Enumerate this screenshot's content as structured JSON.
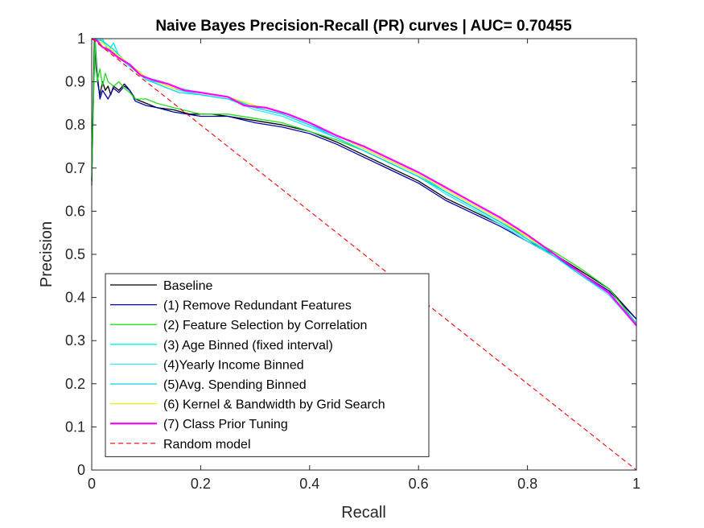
{
  "chart_data": {
    "type": "line",
    "title": "Naive Bayes Precision-Recall (PR) curves | AUC= 0.70455",
    "xlabel": "Recall",
    "ylabel": "Precision",
    "xlim": [
      0,
      1
    ],
    "ylim": [
      0,
      1
    ],
    "x_ticks": [
      0,
      0.2,
      0.4,
      0.6,
      0.8,
      1
    ],
    "x_tick_labels": [
      "0",
      "0.2",
      "0.4",
      "0.6",
      "0.8",
      "1"
    ],
    "y_ticks": [
      0,
      0.1,
      0.2,
      0.3,
      0.4,
      0.5,
      0.6,
      0.7,
      0.8,
      0.9,
      1
    ],
    "y_tick_labels": [
      "0",
      "0.1",
      "0.2",
      "0.3",
      "0.4",
      "0.5",
      "0.6",
      "0.7",
      "0.8",
      "0.9",
      "1"
    ],
    "grid": false,
    "legend_position": "bottom-left",
    "series": [
      {
        "name": "Baseline",
        "color": "#000000",
        "width": 1.3,
        "dash": "",
        "points": [
          [
            0.0,
            0.67
          ],
          [
            0.002,
            0.82
          ],
          [
            0.005,
            1.0
          ],
          [
            0.008,
            0.93
          ],
          [
            0.012,
            0.89
          ],
          [
            0.015,
            0.87
          ],
          [
            0.02,
            0.9
          ],
          [
            0.025,
            0.88
          ],
          [
            0.03,
            0.89
          ],
          [
            0.035,
            0.87
          ],
          [
            0.04,
            0.89
          ],
          [
            0.05,
            0.88
          ],
          [
            0.06,
            0.895
          ],
          [
            0.07,
            0.88
          ],
          [
            0.08,
            0.86
          ],
          [
            0.1,
            0.85
          ],
          [
            0.12,
            0.84
          ],
          [
            0.15,
            0.835
          ],
          [
            0.18,
            0.825
          ],
          [
            0.22,
            0.825
          ],
          [
            0.25,
            0.82
          ],
          [
            0.3,
            0.81
          ],
          [
            0.35,
            0.8
          ],
          [
            0.4,
            0.785
          ],
          [
            0.45,
            0.76
          ],
          [
            0.5,
            0.73
          ],
          [
            0.55,
            0.7
          ],
          [
            0.6,
            0.67
          ],
          [
            0.65,
            0.63
          ],
          [
            0.7,
            0.6
          ],
          [
            0.75,
            0.57
          ],
          [
            0.8,
            0.53
          ],
          [
            0.85,
            0.5
          ],
          [
            0.9,
            0.46
          ],
          [
            0.95,
            0.42
          ],
          [
            1.0,
            0.35
          ]
        ]
      },
      {
        "name": "(1) Remove Redundant Features",
        "color": "#0000aa",
        "width": 1.3,
        "dash": "",
        "points": [
          [
            0.0,
            0.66
          ],
          [
            0.003,
            0.85
          ],
          [
            0.006,
            1.0
          ],
          [
            0.01,
            0.92
          ],
          [
            0.015,
            0.86
          ],
          [
            0.02,
            0.88
          ],
          [
            0.03,
            0.86
          ],
          [
            0.04,
            0.885
          ],
          [
            0.05,
            0.875
          ],
          [
            0.06,
            0.89
          ],
          [
            0.07,
            0.88
          ],
          [
            0.08,
            0.855
          ],
          [
            0.1,
            0.845
          ],
          [
            0.12,
            0.84
          ],
          [
            0.15,
            0.83
          ],
          [
            0.2,
            0.82
          ],
          [
            0.25,
            0.82
          ],
          [
            0.3,
            0.805
          ],
          [
            0.35,
            0.795
          ],
          [
            0.4,
            0.78
          ],
          [
            0.45,
            0.755
          ],
          [
            0.5,
            0.725
          ],
          [
            0.55,
            0.695
          ],
          [
            0.6,
            0.665
          ],
          [
            0.65,
            0.625
          ],
          [
            0.7,
            0.595
          ],
          [
            0.75,
            0.565
          ],
          [
            0.8,
            0.53
          ],
          [
            0.85,
            0.495
          ],
          [
            0.9,
            0.455
          ],
          [
            0.95,
            0.415
          ],
          [
            1.0,
            0.35
          ]
        ]
      },
      {
        "name": "(2) Feature Selection by Correlation",
        "color": "#22dd22",
        "width": 1.3,
        "dash": "",
        "points": [
          [
            0.0,
            0.67
          ],
          [
            0.003,
            0.84
          ],
          [
            0.006,
            1.0
          ],
          [
            0.01,
            0.9
          ],
          [
            0.015,
            0.93
          ],
          [
            0.02,
            0.89
          ],
          [
            0.025,
            0.92
          ],
          [
            0.03,
            0.9
          ],
          [
            0.04,
            0.89
          ],
          [
            0.05,
            0.9
          ],
          [
            0.06,
            0.885
          ],
          [
            0.07,
            0.875
          ],
          [
            0.08,
            0.86
          ],
          [
            0.1,
            0.86
          ],
          [
            0.12,
            0.85
          ],
          [
            0.15,
            0.84
          ],
          [
            0.2,
            0.825
          ],
          [
            0.25,
            0.825
          ],
          [
            0.3,
            0.815
          ],
          [
            0.35,
            0.805
          ],
          [
            0.4,
            0.785
          ],
          [
            0.45,
            0.765
          ],
          [
            0.5,
            0.74
          ],
          [
            0.55,
            0.71
          ],
          [
            0.6,
            0.68
          ],
          [
            0.65,
            0.645
          ],
          [
            0.7,
            0.61
          ],
          [
            0.75,
            0.575
          ],
          [
            0.8,
            0.54
          ],
          [
            0.85,
            0.505
          ],
          [
            0.9,
            0.465
          ],
          [
            0.95,
            0.42
          ],
          [
            1.0,
            0.34
          ]
        ]
      },
      {
        "name": "(3) Age Binned (fixed interval)",
        "color": "#00f0f0",
        "width": 1.3,
        "dash": "",
        "points": [
          [
            0.0,
            1.0
          ],
          [
            0.02,
            1.0
          ],
          [
            0.03,
            0.97
          ],
          [
            0.04,
            0.99
          ],
          [
            0.05,
            0.96
          ],
          [
            0.07,
            0.94
          ],
          [
            0.1,
            0.91
          ],
          [
            0.13,
            0.9
          ],
          [
            0.16,
            0.885
          ],
          [
            0.2,
            0.875
          ],
          [
            0.25,
            0.865
          ],
          [
            0.3,
            0.84
          ],
          [
            0.35,
            0.825
          ],
          [
            0.4,
            0.8
          ],
          [
            0.45,
            0.775
          ],
          [
            0.5,
            0.745
          ],
          [
            0.55,
            0.715
          ],
          [
            0.6,
            0.685
          ],
          [
            0.65,
            0.645
          ],
          [
            0.7,
            0.61
          ],
          [
            0.75,
            0.575
          ],
          [
            0.8,
            0.535
          ],
          [
            0.85,
            0.5
          ],
          [
            0.9,
            0.455
          ],
          [
            0.95,
            0.41
          ],
          [
            1.0,
            0.34
          ]
        ]
      },
      {
        "name": "(4)Yearly Income Binned",
        "color": "#33e8ff",
        "width": 1.3,
        "dash": "",
        "points": [
          [
            0.0,
            1.0
          ],
          [
            0.015,
            1.0
          ],
          [
            0.03,
            0.98
          ],
          [
            0.05,
            0.955
          ],
          [
            0.07,
            0.935
          ],
          [
            0.1,
            0.905
          ],
          [
            0.13,
            0.895
          ],
          [
            0.16,
            0.88
          ],
          [
            0.2,
            0.87
          ],
          [
            0.25,
            0.86
          ],
          [
            0.3,
            0.835
          ],
          [
            0.35,
            0.82
          ],
          [
            0.4,
            0.795
          ],
          [
            0.45,
            0.77
          ],
          [
            0.5,
            0.74
          ],
          [
            0.55,
            0.71
          ],
          [
            0.6,
            0.68
          ],
          [
            0.65,
            0.64
          ],
          [
            0.7,
            0.605
          ],
          [
            0.75,
            0.57
          ],
          [
            0.8,
            0.53
          ],
          [
            0.85,
            0.495
          ],
          [
            0.9,
            0.45
          ],
          [
            0.95,
            0.405
          ],
          [
            1.0,
            0.335
          ]
        ]
      },
      {
        "name": "(5)Avg. Spending Binned",
        "color": "#00d8e8",
        "width": 1.3,
        "dash": "",
        "points": [
          [
            0.0,
            1.0
          ],
          [
            0.02,
            0.995
          ],
          [
            0.04,
            0.975
          ],
          [
            0.06,
            0.95
          ],
          [
            0.08,
            0.925
          ],
          [
            0.1,
            0.905
          ],
          [
            0.13,
            0.89
          ],
          [
            0.16,
            0.875
          ],
          [
            0.2,
            0.87
          ],
          [
            0.25,
            0.86
          ],
          [
            0.3,
            0.84
          ],
          [
            0.35,
            0.825
          ],
          [
            0.4,
            0.8
          ],
          [
            0.45,
            0.77
          ],
          [
            0.5,
            0.74
          ],
          [
            0.55,
            0.71
          ],
          [
            0.6,
            0.68
          ],
          [
            0.65,
            0.645
          ],
          [
            0.7,
            0.61
          ],
          [
            0.75,
            0.575
          ],
          [
            0.8,
            0.535
          ],
          [
            0.85,
            0.495
          ],
          [
            0.9,
            0.45
          ],
          [
            0.95,
            0.41
          ],
          [
            1.0,
            0.34
          ]
        ]
      },
      {
        "name": "(6) Kernel & Bandwidth by Grid Search",
        "color": "#f0f000",
        "width": 1.3,
        "dash": "",
        "points": [
          [
            0.0,
            1.0
          ],
          [
            0.02,
            0.99
          ],
          [
            0.05,
            0.96
          ],
          [
            0.08,
            0.93
          ],
          [
            0.1,
            0.91
          ],
          [
            0.15,
            0.885
          ],
          [
            0.2,
            0.875
          ],
          [
            0.25,
            0.865
          ],
          [
            0.3,
            0.845
          ],
          [
            0.35,
            0.83
          ],
          [
            0.4,
            0.805
          ],
          [
            0.45,
            0.775
          ],
          [
            0.5,
            0.745
          ],
          [
            0.55,
            0.715
          ],
          [
            0.6,
            0.685
          ],
          [
            0.65,
            0.65
          ],
          [
            0.7,
            0.615
          ],
          [
            0.75,
            0.58
          ],
          [
            0.8,
            0.54
          ],
          [
            0.85,
            0.5
          ],
          [
            0.9,
            0.455
          ],
          [
            0.95,
            0.41
          ],
          [
            1.0,
            0.335
          ]
        ]
      },
      {
        "name": "(7) Class Prior Tuning",
        "color": "#ff00ff",
        "width": 2.2,
        "dash": "",
        "points": [
          [
            0.0,
            1.0
          ],
          [
            0.01,
            0.995
          ],
          [
            0.02,
            0.98
          ],
          [
            0.03,
            0.975
          ],
          [
            0.05,
            0.955
          ],
          [
            0.07,
            0.94
          ],
          [
            0.09,
            0.915
          ],
          [
            0.11,
            0.905
          ],
          [
            0.14,
            0.895
          ],
          [
            0.17,
            0.88
          ],
          [
            0.2,
            0.875
          ],
          [
            0.25,
            0.865
          ],
          [
            0.28,
            0.845
          ],
          [
            0.32,
            0.84
          ],
          [
            0.36,
            0.825
          ],
          [
            0.4,
            0.805
          ],
          [
            0.45,
            0.775
          ],
          [
            0.5,
            0.75
          ],
          [
            0.55,
            0.72
          ],
          [
            0.6,
            0.69
          ],
          [
            0.65,
            0.655
          ],
          [
            0.7,
            0.62
          ],
          [
            0.75,
            0.585
          ],
          [
            0.8,
            0.545
          ],
          [
            0.85,
            0.5
          ],
          [
            0.9,
            0.455
          ],
          [
            0.95,
            0.41
          ],
          [
            1.0,
            0.335
          ]
        ]
      },
      {
        "name": "Random model",
        "color": "#ff0000",
        "width": 1.1,
        "dash": "6 4",
        "points": [
          [
            0.0,
            1.0
          ],
          [
            1.0,
            0.0
          ]
        ]
      }
    ]
  }
}
